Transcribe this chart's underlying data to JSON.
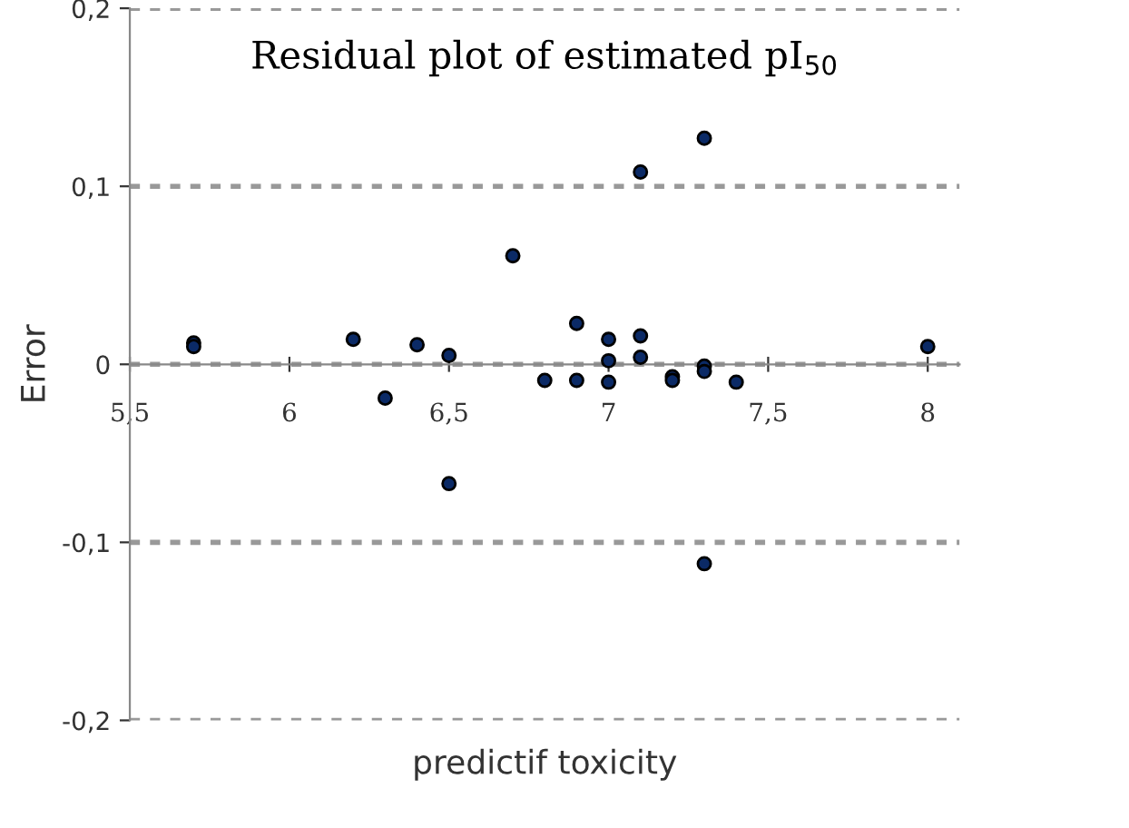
{
  "chart_data": {
    "type": "scatter",
    "title": "Residual plot of estimated pI$_{50}$",
    "xlabel": "predictif toxicity",
    "ylabel": "Error",
    "x": [
      5.7,
      5.7,
      6.2,
      6.3,
      6.4,
      6.5,
      6.5,
      6.7,
      6.8,
      6.9,
      6.9,
      7.0,
      7.0,
      7.0,
      7.1,
      7.1,
      7.1,
      7.2,
      7.2,
      7.3,
      7.3,
      7.3,
      7.3,
      7.4,
      8.0
    ],
    "values": [
      0.012,
      0.01,
      0.014,
      -0.019,
      0.011,
      0.005,
      -0.067,
      0.061,
      -0.009,
      0.023,
      -0.009,
      0.014,
      0.002,
      -0.01,
      0.108,
      0.016,
      0.004,
      -0.007,
      -0.009,
      0.127,
      -0.001,
      -0.004,
      -0.112,
      -0.01,
      0.01
    ],
    "color": "#0b2a66",
    "marker": "circle",
    "xlim": [
      5.5,
      8.1
    ],
    "ylim": [
      -0.2,
      0.2
    ],
    "xticks": [
      {
        "value": 5.5,
        "label": "5,5"
      },
      6,
      {
        "value": 6.5,
        "label": "6,5"
      },
      7,
      {
        "value": 7.5,
        "label": "7,5"
      },
      8
    ],
    "yticks": [
      {
        "value": -0.2,
        "label": "-0,2"
      },
      {
        "value": -0.1,
        "label": "-0,1"
      },
      0,
      {
        "value": 0.1,
        "label": "0,1"
      },
      {
        "value": 0.2,
        "label": "0,2"
      }
    ],
    "grid": "y"
  }
}
